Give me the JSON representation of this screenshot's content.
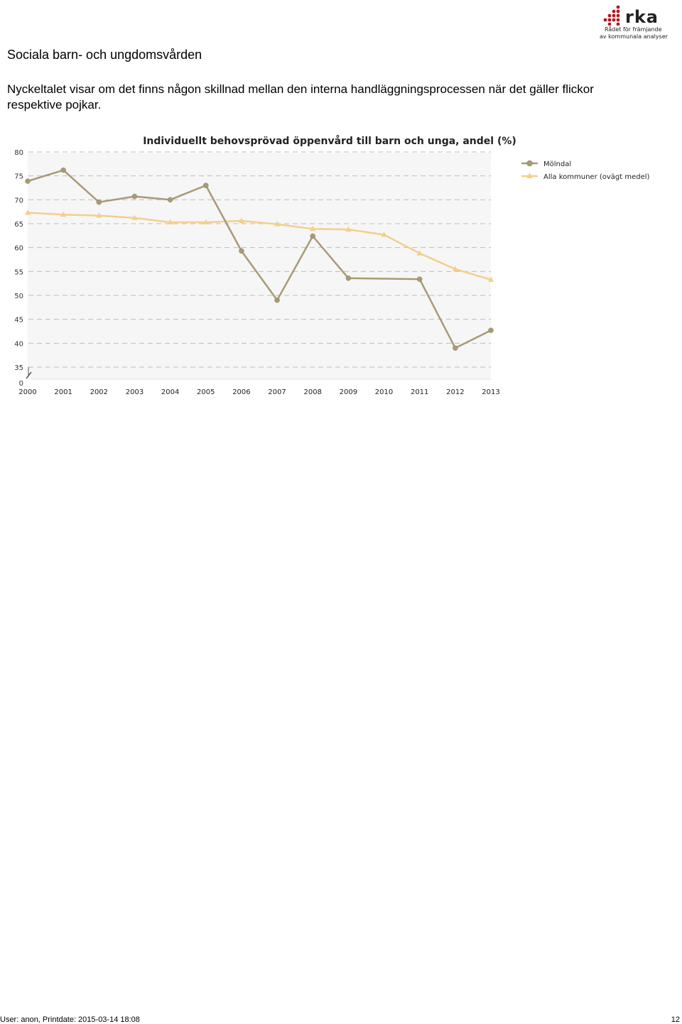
{
  "logo": {
    "word": "rka",
    "subtitle_line1": "Rådet för främjande",
    "subtitle_line2": "av kommunala analyser"
  },
  "page": {
    "section_title": "Sociala barn- och ungdomsvården",
    "description": "Nyckeltalet visar om det finns någon skillnad mellan den interna handläggningsprocessen när det gäller flickor respektive pojkar."
  },
  "chart_data": {
    "type": "line",
    "title": "Individuellt behovsprövad öppenvård till barn och unga, andel (%)",
    "xlabel": "",
    "ylabel": "",
    "categories": [
      "2000",
      "2001",
      "2002",
      "2003",
      "2004",
      "2005",
      "2006",
      "2007",
      "2008",
      "2009",
      "2010",
      "2011",
      "2012",
      "2013"
    ],
    "y_ticks": [
      35,
      40,
      45,
      50,
      55,
      60,
      65,
      70,
      75,
      80
    ],
    "y_zero_label": "0",
    "ylim": [
      35,
      80
    ],
    "axis_break": true,
    "grid": "dashed horizontal",
    "legend_position": "top-right",
    "series": [
      {
        "name": "Mölndal",
        "marker": "circle",
        "color": "#a89a76",
        "values": [
          73.9,
          76.2,
          69.5,
          70.7,
          70.0,
          73.0,
          59.3,
          49.0,
          62.4,
          53.6,
          null,
          53.4,
          39.0,
          42.7
        ]
      },
      {
        "name": "Alla kommuner (ovägt medel)",
        "marker": "triangle",
        "color": "#f3cf8d",
        "values": [
          67.3,
          66.9,
          66.7,
          66.2,
          65.3,
          65.3,
          65.6,
          64.9,
          63.9,
          63.8,
          62.7,
          58.8,
          55.5,
          53.3
        ]
      }
    ]
  },
  "footer": {
    "left": "User: anon, Printdate: 2015-03-14 18:08",
    "page_number": "12"
  }
}
